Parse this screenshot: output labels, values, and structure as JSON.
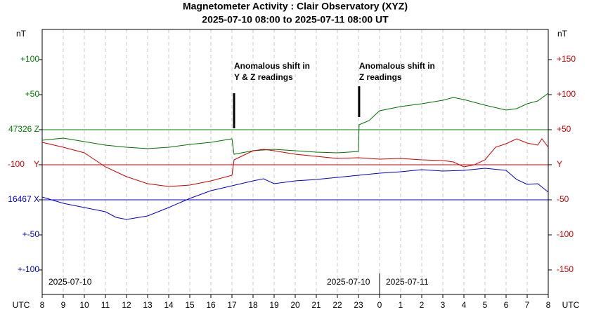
{
  "chart_data": {
    "type": "line",
    "title": "Magnetometer Activity : Clair Observatory (XYZ)",
    "subtitle": "2025-07-10 08:00 to 2025-07-11 08:00 UT",
    "y_unit_left": "nT",
    "y_unit_right": "nT",
    "x_unit_left": "UTC",
    "x_unit_right": "UTC",
    "xlim": [
      8,
      32
    ],
    "xticks": [
      8,
      9,
      10,
      11,
      12,
      13,
      14,
      15,
      16,
      17,
      18,
      19,
      20,
      21,
      22,
      23,
      {
        "value": 24,
        "label": "0"
      },
      {
        "value": 25,
        "label": "1"
      },
      {
        "value": 26,
        "label": "2"
      },
      {
        "value": 27,
        "label": "3"
      },
      {
        "value": 28,
        "label": "4"
      },
      {
        "value": 29,
        "label": "5"
      },
      {
        "value": 30,
        "label": "6"
      },
      {
        "value": 31,
        "label": "7"
      },
      {
        "value": 32,
        "label": "8"
      }
    ],
    "ylim": [
      -185,
      193
    ],
    "yticks": [
      {
        "value": 150,
        "label": "+150"
      },
      {
        "value": 100,
        "label": "+100"
      },
      {
        "value": 50,
        "label": "+50"
      },
      {
        "value": 0,
        "label": "Y"
      },
      -50,
      -100,
      -150
    ],
    "y_left_ticks": [
      {
        "value": 150,
        "label": "+100",
        "color": "#008000"
      },
      {
        "value": 100,
        "label": "+50",
        "color": "#008000"
      },
      {
        "value": 50,
        "label": "47326 Z",
        "color": "#008000"
      },
      {
        "value": 0,
        "label": "-100    Y",
        "color": "#cc0000"
      },
      {
        "value": -50,
        "label": "16467 X",
        "color": "#0000cc"
      },
      {
        "value": -100,
        "label": "+-50",
        "color": "#0000cc"
      },
      {
        "value": -150,
        "label": "+-100",
        "color": "#0000cc"
      }
    ],
    "baselines": [
      {
        "value": 50,
        "color": "#008000"
      },
      {
        "value": 0,
        "color": "#cc0000"
      },
      {
        "value": -50,
        "color": "#0000cc"
      }
    ],
    "grid": true,
    "date_labels": [
      {
        "x": 8.3,
        "label": "2025-07-10"
      },
      {
        "x": 21.5,
        "label": "2025-07-10"
      },
      {
        "x": 24.3,
        "label": "2025-07-11"
      }
    ],
    "day_divider": 24,
    "annotations": [
      {
        "x": 17.1,
        "lines": [
          "Anomalous shift in",
          "Y & Z readings"
        ],
        "bar": [
          52,
          102
        ]
      },
      {
        "x": 23.03,
        "lines": [
          "Anomalous shift in",
          "Z readings"
        ],
        "bar": [
          68,
          112
        ]
      }
    ],
    "series": [
      {
        "name": "Z",
        "color": "#007000",
        "x": [
          8,
          9,
          10,
          11,
          12,
          13,
          14,
          15,
          16,
          17,
          17.1,
          18,
          19,
          20,
          21,
          22,
          23,
          23.03,
          23.5,
          24,
          25,
          26,
          27,
          27.5,
          28,
          29,
          30,
          30.5,
          31,
          31.5,
          32
        ],
        "values": [
          35,
          38,
          33,
          28,
          25,
          23,
          25,
          29,
          32,
          37,
          15,
          20,
          22,
          20,
          18,
          17,
          19,
          57,
          63,
          77,
          83,
          87,
          92,
          96,
          93,
          85,
          78,
          80,
          87,
          91,
          102
        ]
      },
      {
        "name": "Y",
        "color": "#cc0000",
        "x": [
          8,
          9,
          10,
          11,
          11.5,
          12,
          13,
          14,
          15,
          16,
          17,
          17.1,
          18,
          18.5,
          19,
          20,
          21,
          22,
          23,
          24,
          25,
          26,
          27,
          27.5,
          28,
          28.5,
          29,
          29.5,
          30,
          30.5,
          31,
          31.5,
          31.7,
          32
        ],
        "values": [
          32,
          25,
          17,
          -3,
          -10,
          -17,
          -27,
          -31,
          -29,
          -23,
          -15,
          7,
          20,
          22,
          20,
          15,
          12,
          9,
          10,
          8,
          9,
          7,
          6,
          4,
          -3,
          0,
          7,
          25,
          30,
          37,
          31,
          28,
          37,
          25
        ]
      },
      {
        "name": "X",
        "color": "#0000cc",
        "x": [
          8,
          9,
          10,
          11,
          11.5,
          12,
          13,
          14,
          15,
          16,
          17,
          18,
          18.5,
          19,
          20,
          21,
          22,
          23,
          24,
          25,
          26,
          27,
          28,
          29,
          30,
          30.5,
          31,
          31.5,
          32
        ],
        "values": [
          -46,
          -55,
          -61,
          -67,
          -75,
          -78,
          -73,
          -61,
          -48,
          -37,
          -30,
          -23,
          -20,
          -27,
          -23,
          -21,
          -18,
          -15,
          -12,
          -10,
          -7,
          -9,
          -8,
          -5,
          -8,
          -21,
          -28,
          -27,
          -39
        ]
      }
    ]
  }
}
